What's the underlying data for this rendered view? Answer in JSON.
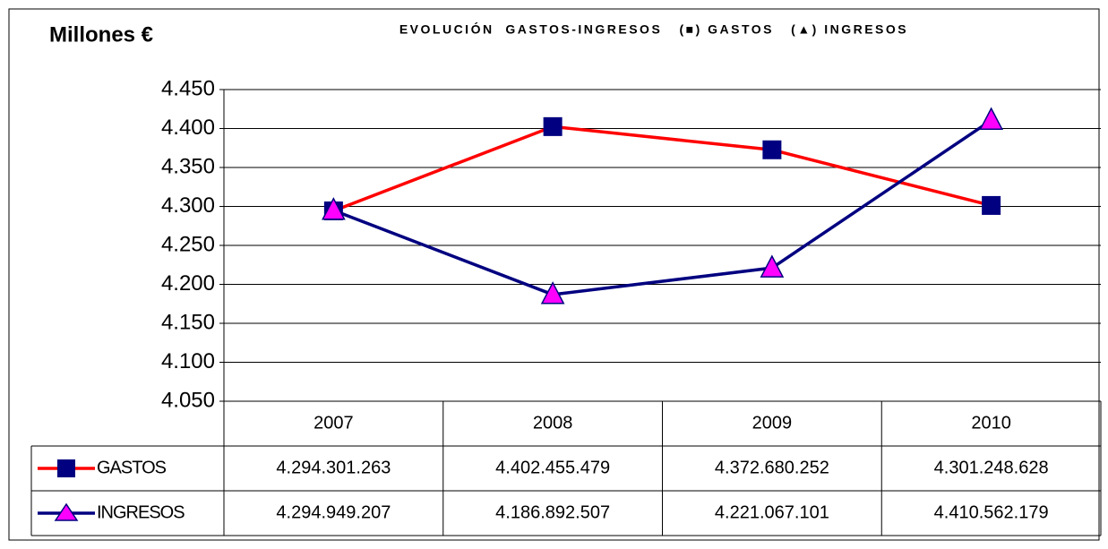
{
  "chart_data": {
    "type": "line",
    "title": "EVOLUCIÓN  GASTOS-INGRESOS   (■) GASTOS   (▲) INGRESOS",
    "ylabel": "Millones €",
    "categories": [
      "2007",
      "2008",
      "2009",
      "2010"
    ],
    "series": [
      {
        "name": "GASTOS",
        "color": "#ff0000",
        "marker": "square",
        "marker_color": "#000080",
        "values": [
          4294.301263,
          4402.455479,
          4372.680252,
          4301.248628
        ],
        "value_labels": [
          "4.294.301.263",
          "4.402.455.479",
          "4.372.680.252",
          "4.301.248.628"
        ]
      },
      {
        "name": "INGRESOS",
        "color": "#000080",
        "marker": "triangle",
        "marker_color": "#ff00ff",
        "values": [
          4294.949207,
          4186.892507,
          4221.067101,
          4410.562179
        ],
        "value_labels": [
          "4.294.949.207",
          "4.186.892.507",
          "4.221.067.101",
          "4.410.562.179"
        ]
      }
    ],
    "ylim": [
      4050,
      4450
    ],
    "yticks": [
      {
        "value": 4050,
        "label": "4.050"
      },
      {
        "value": 4100,
        "label": "4.100"
      },
      {
        "value": 4150,
        "label": "4.150"
      },
      {
        "value": 4200,
        "label": "4.200"
      },
      {
        "value": 4250,
        "label": "4.250"
      },
      {
        "value": 4300,
        "label": "4.300"
      },
      {
        "value": 4350,
        "label": "4.350"
      },
      {
        "value": 4400,
        "label": "4.400"
      },
      {
        "value": 4450,
        "label": "4.450"
      }
    ],
    "grid": true
  }
}
